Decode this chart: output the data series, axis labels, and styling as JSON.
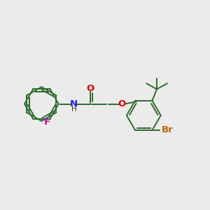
{
  "bg_color": "#ebebeb",
  "bond_color": "#2d6b2d",
  "bond_width": 1.4,
  "atom_colors": {
    "O": "#e00000",
    "N": "#2020e0",
    "F": "#bb00bb",
    "Br": "#bb6600",
    "C": "#000000",
    "H": "#333333"
  },
  "font_size": 8.5
}
